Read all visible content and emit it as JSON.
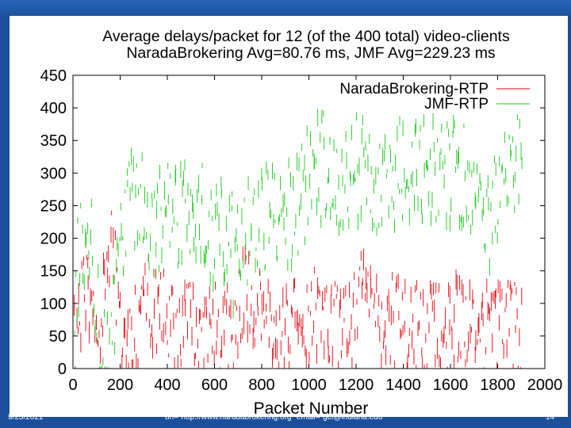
{
  "footer": {
    "date": "9/25/2021",
    "url_email": "url=\"http://www.naradabrokering.org\" email=\"gcf@indiana.edu\"",
    "page": "14"
  },
  "colors": {
    "frame": "#1b4f9c",
    "narada": "#e8000b",
    "jmf": "#18c818",
    "axis": "#000000"
  },
  "chart_data": {
    "type": "line",
    "title": "Average delays/packet for 12 (of the 400 total) video-clients",
    "subtitle": "NaradaBrokering Avg=80.76 ms, JMF Avg=229.23 ms",
    "xlabel": "Packet Number",
    "ylabel": "",
    "xlim": [
      0,
      2000
    ],
    "ylim": [
      0,
      450
    ],
    "xticks": [
      0,
      200,
      400,
      600,
      800,
      1000,
      1200,
      1400,
      1600,
      1800,
      2000
    ],
    "yticks": [
      0,
      50,
      100,
      150,
      200,
      250,
      300,
      350,
      400,
      450
    ],
    "legend_position": "top-right",
    "grid": false,
    "series": [
      {
        "name": "NaradaBrokering-RTP",
        "color": "#e8000b",
        "style": "scattered short vertical spikes",
        "x": [
          0,
          40,
          80,
          120,
          160,
          200,
          240,
          280,
          320,
          360,
          400,
          440,
          480,
          520,
          560,
          600,
          640,
          680,
          720,
          760,
          800,
          840,
          880,
          920,
          960,
          1000,
          1040,
          1080,
          1120,
          1160,
          1200,
          1240,
          1280,
          1320,
          1360,
          1400,
          1440,
          1480,
          1520,
          1560,
          1600,
          1640,
          1680,
          1720,
          1760,
          1800,
          1840,
          1880,
          1920
        ],
        "y": [
          60,
          110,
          120,
          90,
          230,
          60,
          60,
          85,
          120,
          100,
          85,
          80,
          75,
          70,
          80,
          70,
          60,
          75,
          130,
          110,
          85,
          75,
          80,
          70,
          80,
          95,
          90,
          85,
          80,
          80,
          90,
          180,
          110,
          85,
          80,
          75,
          75,
          65,
          75,
          60,
          75,
          90,
          70,
          60,
          70,
          70,
          75,
          65,
          60
        ]
      },
      {
        "name": "JMF-RTP",
        "color": "#18c818",
        "style": "scattered short vertical spikes",
        "x": [
          0,
          40,
          80,
          120,
          160,
          200,
          240,
          280,
          320,
          360,
          400,
          440,
          480,
          520,
          560,
          600,
          640,
          680,
          720,
          760,
          800,
          840,
          880,
          920,
          960,
          1000,
          1040,
          1080,
          1120,
          1160,
          1200,
          1240,
          1280,
          1320,
          1360,
          1400,
          1440,
          1480,
          1520,
          1560,
          1600,
          1640,
          1680,
          1720,
          1760,
          1800,
          1840,
          1880,
          1920
        ],
        "y": [
          110,
          200,
          180,
          60,
          50,
          200,
          260,
          250,
          240,
          230,
          245,
          240,
          250,
          235,
          230,
          220,
          210,
          185,
          210,
          220,
          230,
          235,
          240,
          250,
          255,
          300,
          320,
          310,
          310,
          300,
          320,
          330,
          300,
          310,
          300,
          310,
          320,
          310,
          320,
          300,
          300,
          320,
          290,
          260,
          240,
          270,
          300,
          310,
          310
        ]
      }
    ]
  }
}
